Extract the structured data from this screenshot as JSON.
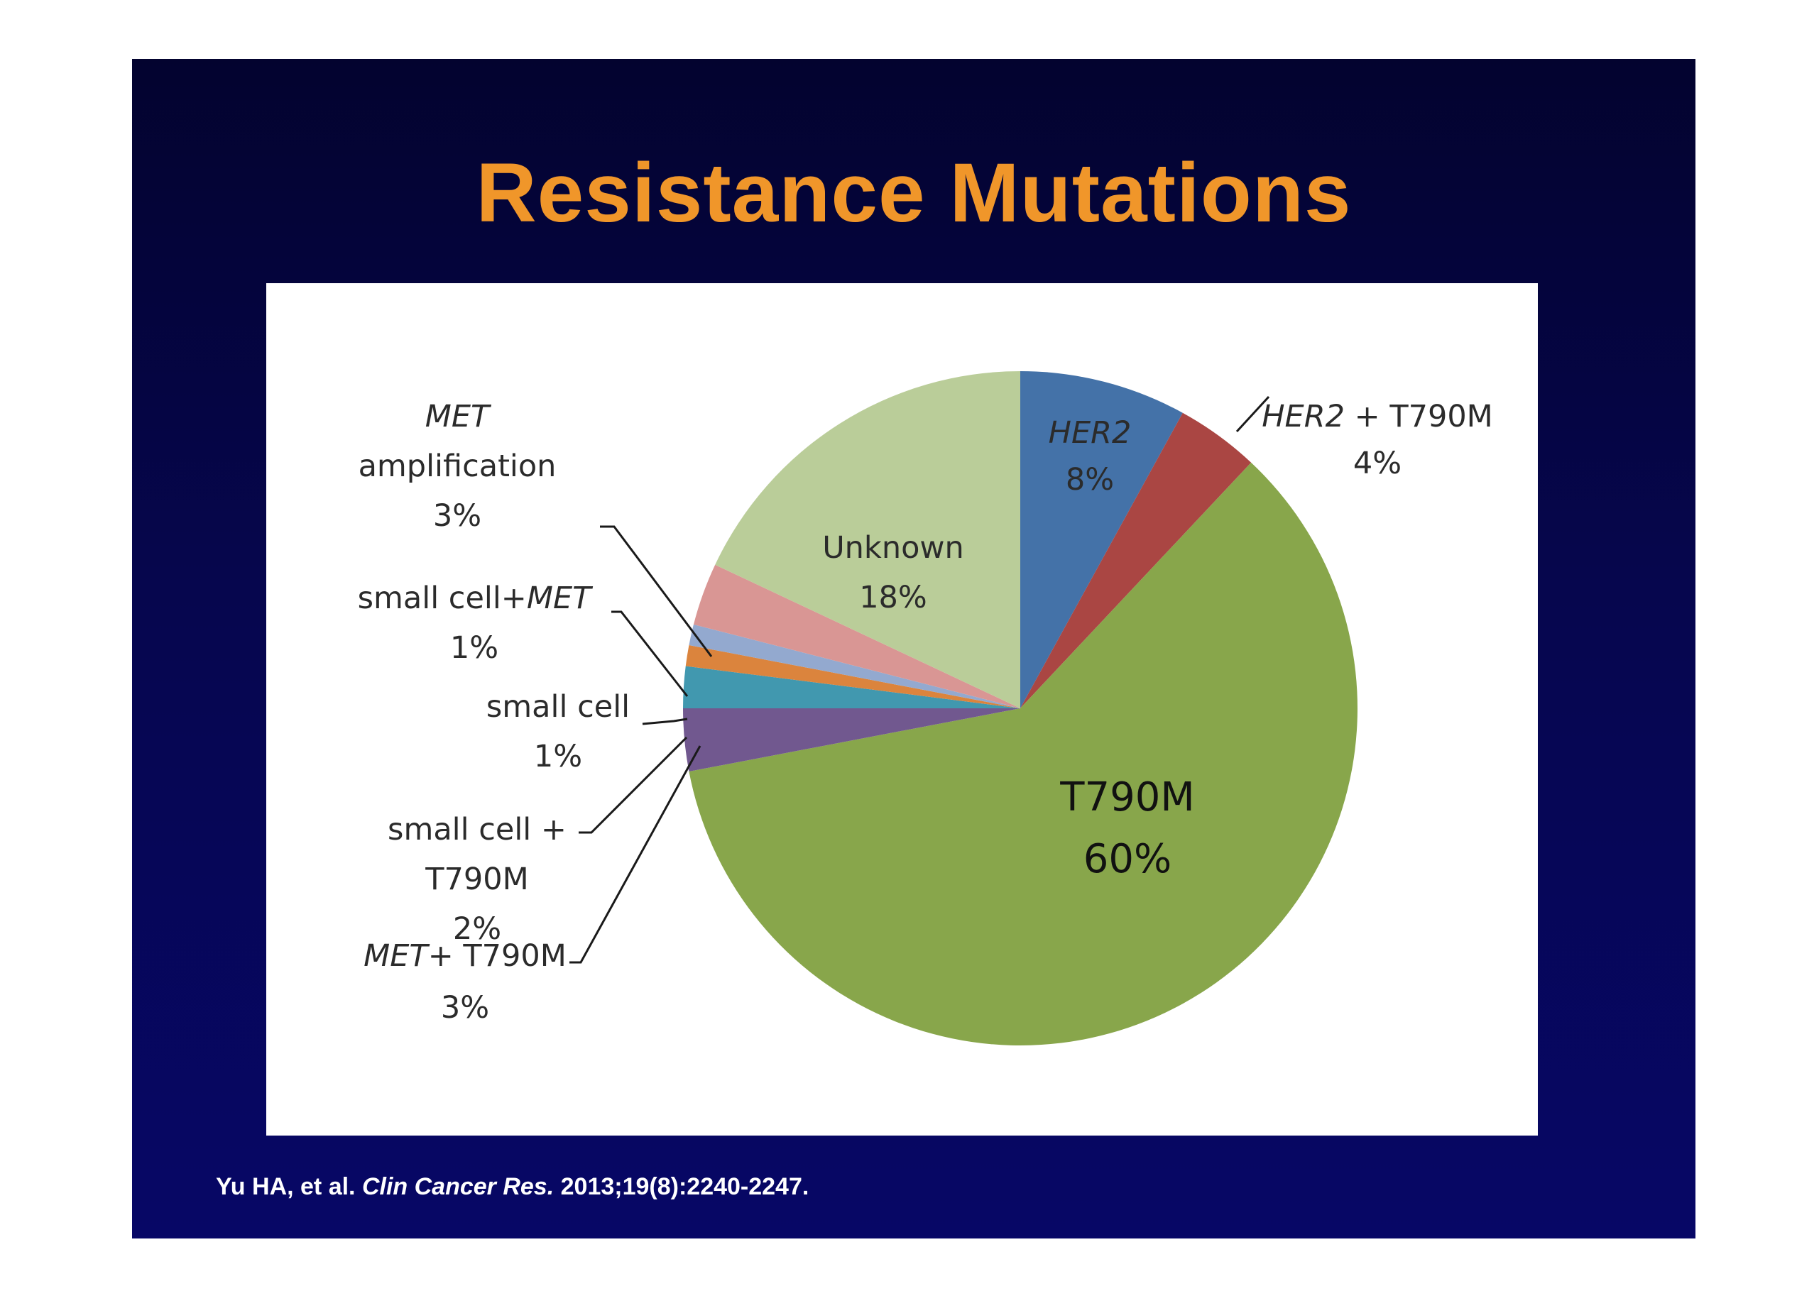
{
  "slide": {
    "title": "Resistance Mutations",
    "citation": {
      "authors": "Yu HA, et al.",
      "journal": "Clin Cancer Res.",
      "details": "2013;19(8):2240-2247."
    }
  },
  "chart_data": {
    "type": "pie",
    "title": "",
    "start_angle": "12 o'clock",
    "direction": "clockwise",
    "slices": [
      {
        "label": "HER2",
        "value": 8,
        "value_label": "8%",
        "color": "#4472a8"
      },
      {
        "label": "HER2 + T790M",
        "value": 4,
        "value_label": "4%",
        "color": "#aa4643"
      },
      {
        "label": "T790M",
        "value": 60,
        "value_label": "60%",
        "color": "#88a64b"
      },
      {
        "label": "MET+ T790M",
        "value": 3,
        "value_label": "3%",
        "color": "#71588f"
      },
      {
        "label": "small cell + T790M",
        "value": 2,
        "value_label": "2%",
        "color": "#4198af"
      },
      {
        "label": "small cell",
        "value": 1,
        "value_label": "1%",
        "color": "#db843d"
      },
      {
        "label": "small cell+MET",
        "value": 1,
        "value_label": "1%",
        "color": "#93a9cf"
      },
      {
        "label": "MET amplification",
        "value": 3,
        "value_label": "3%",
        "color": "#d99694"
      },
      {
        "label": "Unknown",
        "value": 18,
        "value_label": "18%",
        "color": "#bacd99"
      }
    ]
  }
}
